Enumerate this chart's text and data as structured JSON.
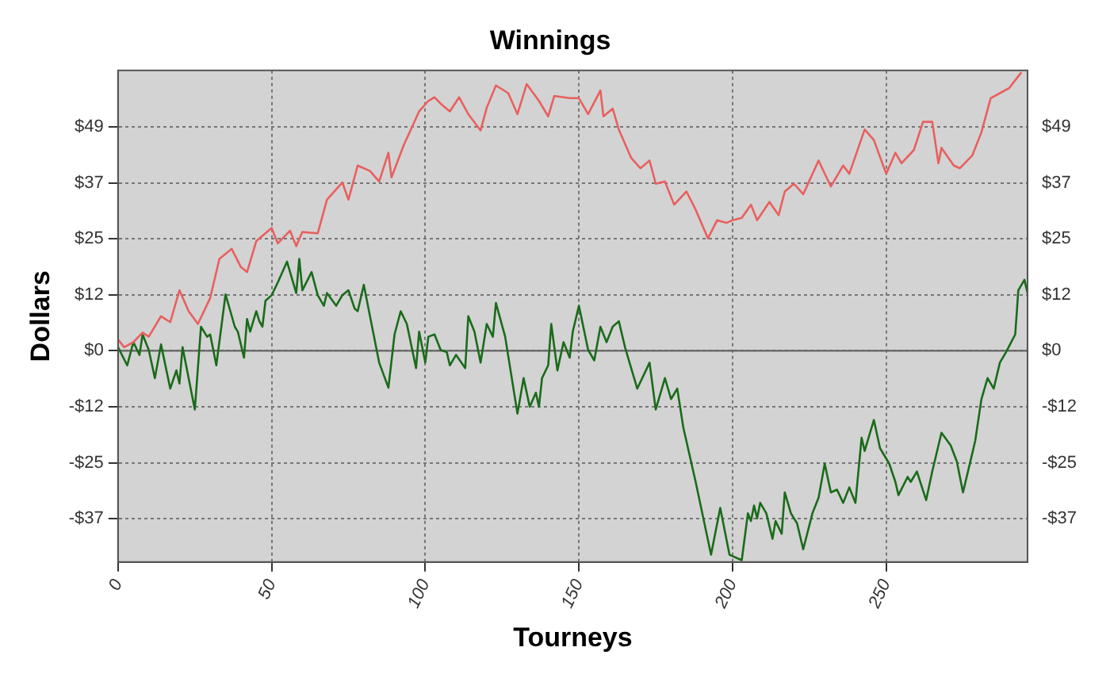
{
  "chart_data": {
    "type": "line",
    "title": "Winnings",
    "xlabel": "Tourneys",
    "ylabel": "Dollars",
    "xlim": [
      0,
      296
    ],
    "xticks": [
      0,
      50,
      100,
      150,
      200,
      250
    ],
    "ylim": [
      -46.4,
      61.6
    ],
    "yticks": [
      {
        "value": -36.9,
        "label": "-$37"
      },
      {
        "value": -24.6,
        "label": "-$25"
      },
      {
        "value": -12.3,
        "label": "-$12"
      },
      {
        "value": 0,
        "label": "$0"
      },
      {
        "value": 12.3,
        "label": "$12"
      },
      {
        "value": 24.6,
        "label": "$25"
      },
      {
        "value": 36.9,
        "label": "$37"
      },
      {
        "value": 49.2,
        "label": "$49"
      }
    ],
    "y2lim": [
      -46.4,
      61.6
    ],
    "y2ticks": [
      {
        "value": -36.9,
        "label": "-$37"
      },
      {
        "value": -24.6,
        "label": "-$25"
      },
      {
        "value": -12.3,
        "label": "-$12"
      },
      {
        "value": 0,
        "label": "$0"
      },
      {
        "value": 12.3,
        "label": "$12"
      },
      {
        "value": 24.6,
        "label": "$25"
      },
      {
        "value": 36.9,
        "label": "$37"
      },
      {
        "value": 49.2,
        "label": "$49"
      }
    ],
    "grid": true,
    "legend": false,
    "marker": "none",
    "line_style": "solid",
    "ref_lines": [
      {
        "axis": "y",
        "value": 0,
        "color": "#666666"
      }
    ],
    "series": [
      {
        "color": "#e8605f",
        "x": [
          0,
          2,
          5,
          8,
          10,
          14,
          17,
          20,
          23,
          26,
          30,
          33,
          37,
          40,
          42,
          45,
          50,
          52,
          56,
          58,
          60,
          65,
          68,
          73,
          75,
          78,
          82,
          85,
          88,
          89,
          93,
          98,
          101,
          103,
          105,
          108,
          111,
          114,
          118,
          120,
          123,
          127,
          130,
          133,
          137,
          140,
          142,
          147,
          150,
          153,
          157,
          158,
          161,
          163,
          167,
          170,
          173,
          175,
          178,
          181,
          185,
          188,
          192,
          195,
          198,
          200,
          203,
          206,
          208,
          212,
          215,
          217,
          220,
          223,
          228,
          232,
          236,
          238,
          243,
          246,
          250,
          253,
          255,
          259,
          262,
          265,
          267,
          268,
          272,
          274,
          278,
          281,
          284,
          287,
          290,
          294
        ],
        "values": [
          2.5,
          0.8,
          1.9,
          4.0,
          3.1,
          7.6,
          6.3,
          13.3,
          8.7,
          5.9,
          11.6,
          20.2,
          22.4,
          18.4,
          17.3,
          24.1,
          27.0,
          23.6,
          26.4,
          23.0,
          26.1,
          25.8,
          33.2,
          37.0,
          33.2,
          40.7,
          39.5,
          37.2,
          43.5,
          38.1,
          45.2,
          52.6,
          54.9,
          55.7,
          54.3,
          52.6,
          55.7,
          52.0,
          48.4,
          53.4,
          58.3,
          56.6,
          52.0,
          58.6,
          54.9,
          51.5,
          56.0,
          55.5,
          55.5,
          52.0,
          57.2,
          51.5,
          53.2,
          48.6,
          42.4,
          40.1,
          41.8,
          36.7,
          37.2,
          32.1,
          35.0,
          31.0,
          24.7,
          28.7,
          28.1,
          28.7,
          29.2,
          32.1,
          28.7,
          32.7,
          29.8,
          35.0,
          36.7,
          34.4,
          41.8,
          36.1,
          40.7,
          38.9,
          48.6,
          46.3,
          38.9,
          43.5,
          41.2,
          44.1,
          50.3,
          50.3,
          41.2,
          44.6,
          40.7,
          40.1,
          42.9,
          48.0,
          55.5,
          56.6,
          57.7,
          61.2
        ]
      },
      {
        "color": "#1a6b1a",
        "x": [
          0,
          3,
          5,
          7,
          8,
          10,
          12,
          14,
          17,
          19,
          20,
          21,
          25,
          27,
          29,
          30,
          32,
          35,
          38,
          39,
          41,
          42,
          43,
          45,
          46,
          47,
          48,
          50,
          52,
          55,
          58,
          59,
          60,
          63,
          65,
          67,
          68,
          71,
          73,
          75,
          77,
          78,
          80,
          83,
          85,
          88,
          90,
          92,
          94,
          97,
          98,
          100,
          101,
          103,
          105,
          107,
          108,
          110,
          113,
          114,
          116,
          118,
          120,
          122,
          123,
          126,
          130,
          132,
          134,
          136,
          137,
          138,
          140,
          141,
          143,
          145,
          147,
          148,
          150,
          153,
          155,
          157,
          159,
          161,
          163,
          165,
          167,
          169,
          173,
          175,
          178,
          180,
          182,
          184,
          188,
          193,
          196,
          199,
          203,
          205,
          206,
          207,
          208,
          209,
          211,
          213,
          214,
          216,
          217,
          219,
          221,
          223,
          226,
          228,
          230,
          232,
          234,
          236,
          238,
          240,
          242,
          243,
          246,
          248,
          251,
          253,
          254,
          257,
          258,
          260,
          263,
          265,
          268,
          271,
          273,
          275,
          278,
          279,
          281,
          283,
          285,
          287,
          289,
          292,
          293,
          295,
          296
        ],
        "values": [
          0.8,
          -3.2,
          1.9,
          -0.9,
          3.6,
          0.2,
          -6.0,
          1.4,
          -8.3,
          -4.3,
          -7.2,
          0.8,
          -12.9,
          5.3,
          3.1,
          3.6,
          -3.2,
          12.4,
          5.3,
          4.2,
          -1.5,
          7.0,
          4.2,
          8.7,
          6.5,
          5.3,
          11.0,
          12.2,
          15.0,
          19.6,
          12.7,
          20.2,
          13.3,
          17.3,
          12.2,
          9.9,
          12.7,
          9.9,
          12.2,
          13.3,
          9.3,
          8.7,
          14.5,
          4.2,
          -2.6,
          -8.1,
          3.6,
          8.7,
          5.9,
          -3.8,
          4.2,
          -2.6,
          3.1,
          3.6,
          0.2,
          -0.3,
          -3.2,
          -0.9,
          -3.8,
          7.6,
          4.2,
          -2.6,
          5.9,
          3.1,
          10.5,
          3.1,
          -13.8,
          -6.0,
          -12.3,
          -9.2,
          -12.3,
          -6.0,
          -3.2,
          5.9,
          -4.3,
          1.9,
          -1.5,
          4.2,
          9.9,
          0.2,
          -2.1,
          5.3,
          1.9,
          5.3,
          6.5,
          0.8,
          -3.8,
          -8.3,
          -2.6,
          -12.9,
          -6.0,
          -10.6,
          -8.3,
          -16.9,
          -28.8,
          -44.8,
          -34.5,
          -44.8,
          -46.0,
          -35.7,
          -37.4,
          -34.0,
          -36.8,
          -33.4,
          -35.7,
          -41.3,
          -37.4,
          -40.2,
          -31.1,
          -35.7,
          -37.9,
          -43.6,
          -35.7,
          -32.3,
          -24.8,
          -31.1,
          -30.5,
          -33.4,
          -30.0,
          -33.4,
          -19.1,
          -22.0,
          -15.2,
          -21.4,
          -24.8,
          -28.8,
          -31.7,
          -27.7,
          -28.8,
          -26.5,
          -32.8,
          -26.5,
          -18.0,
          -20.8,
          -24.3,
          -31.1,
          -22.6,
          -19.7,
          -10.6,
          -6.0,
          -8.3,
          -2.6,
          -0.3,
          3.6,
          13.3,
          15.6,
          12.7
        ]
      }
    ]
  }
}
